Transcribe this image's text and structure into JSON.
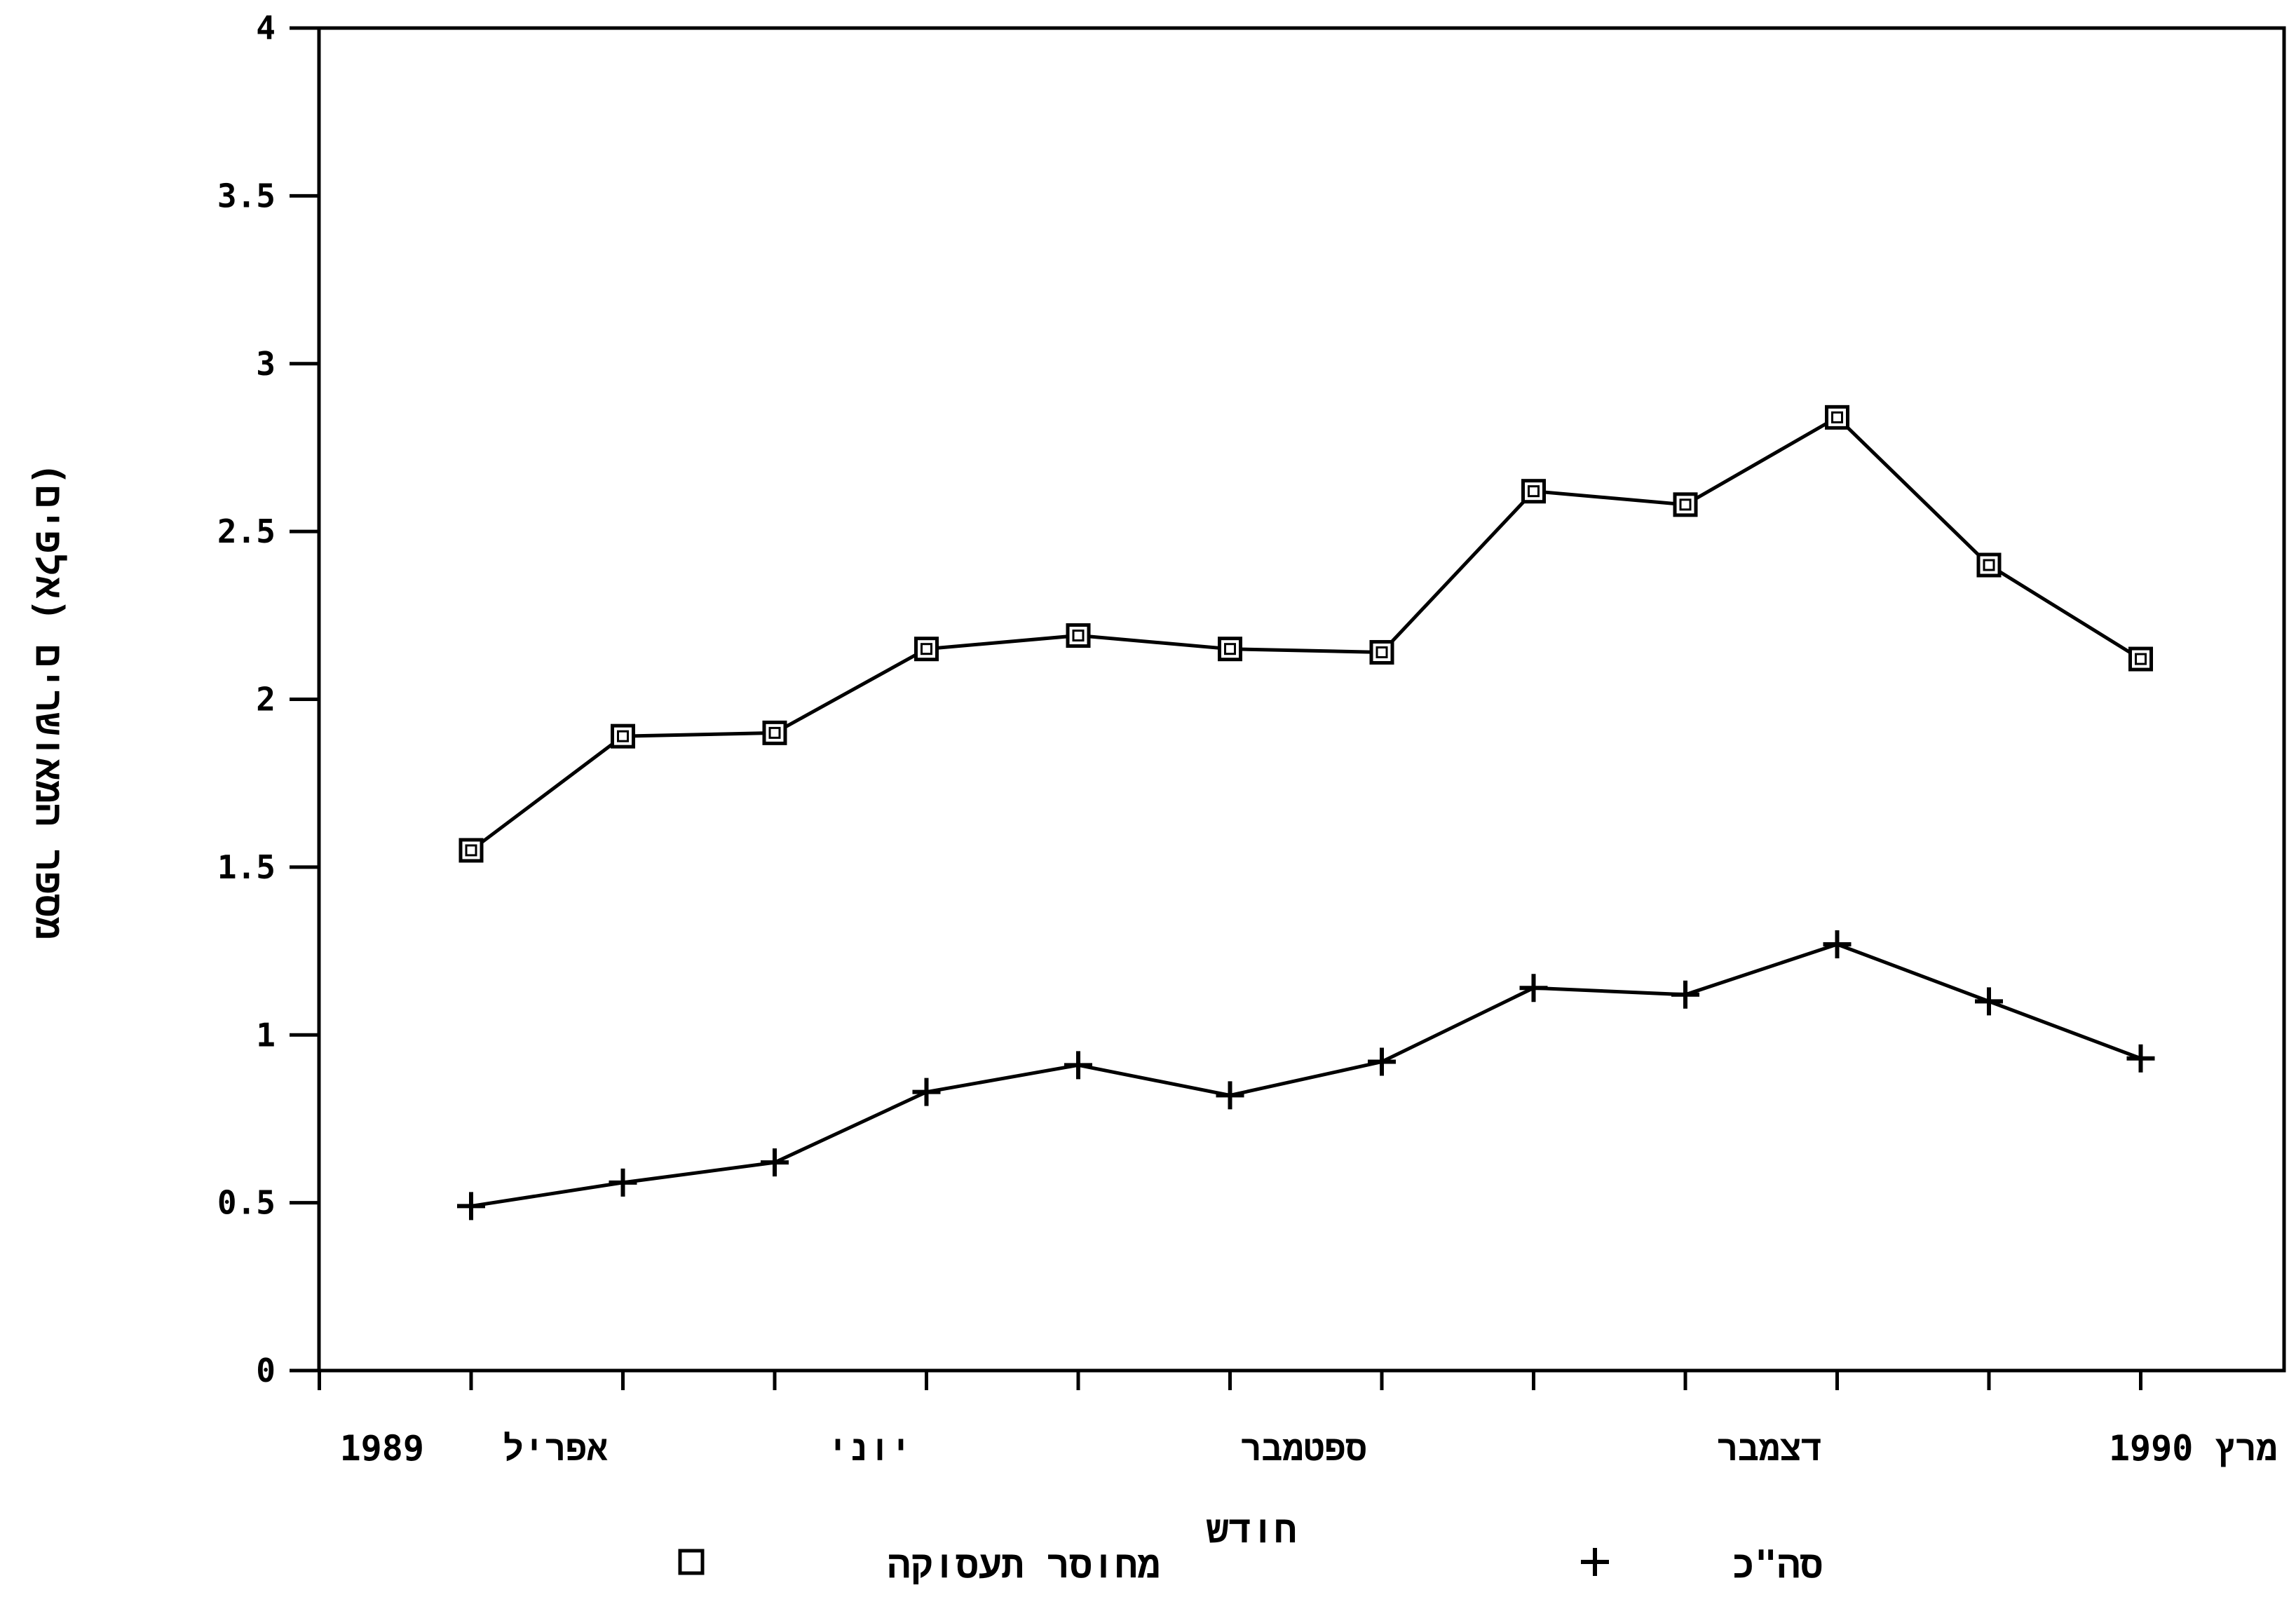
{
  "chart_data": {
    "type": "line",
    "title": "",
    "xlabel": "חודש",
    "ylabel": "מספר המאושרים (אלפים)",
    "ylim": [
      0,
      4
    ],
    "y_ticks": [
      "0",
      "0.5",
      "1",
      "1.5",
      "2",
      "2.5",
      "3",
      "3.5",
      "4"
    ],
    "x_tick_labels": [
      {
        "index": -1,
        "text": "1989"
      },
      {
        "index": 0,
        "text": "אפריל"
      },
      {
        "index": 2,
        "text": "יוני"
      },
      {
        "index": 5,
        "text": "ספטמבר"
      },
      {
        "index": 8,
        "text": "דצמבר"
      },
      {
        "index": 11,
        "text": "מרץ 1990"
      }
    ],
    "x_count": 12,
    "grid": false,
    "legend_position": "bottom",
    "series": [
      {
        "name": "מחוסר תעסוקה",
        "marker": "square",
        "values": [
          1.55,
          1.89,
          1.9,
          2.15,
          2.19,
          2.15,
          2.14,
          2.62,
          2.58,
          2.84,
          2.4,
          2.12
        ]
      },
      {
        "name": "סה\"כ",
        "marker": "plus",
        "values": [
          0.49,
          0.56,
          0.62,
          0.83,
          0.91,
          0.82,
          0.92,
          1.14,
          1.12,
          1.27,
          1.1,
          0.93
        ]
      }
    ]
  }
}
